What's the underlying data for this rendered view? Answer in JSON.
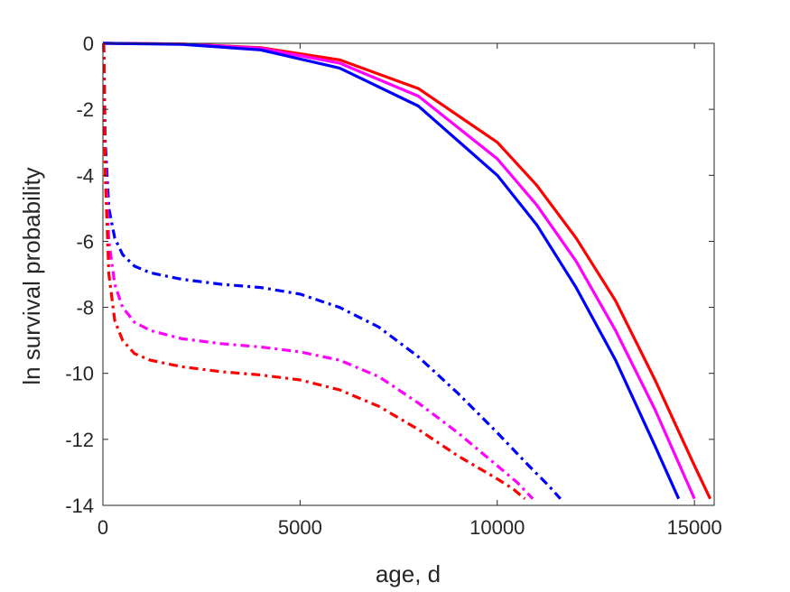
{
  "chart_data": {
    "type": "line",
    "xlabel": "age, d",
    "ylabel": "ln survival probability",
    "xlim": [
      0,
      15500
    ],
    "ylim": [
      -14,
      0
    ],
    "xticks": [
      0,
      5000,
      10000,
      15000
    ],
    "xtick_labels": [
      "0",
      "5000",
      "10000",
      "15000"
    ],
    "yticks": [
      0,
      -2,
      -4,
      -6,
      -8,
      -10,
      -12,
      -14
    ],
    "ytick_labels": [
      "0",
      "-2",
      "-4",
      "-6",
      "-8",
      "-10",
      "-12",
      "-14"
    ],
    "grid": false,
    "series": [
      {
        "color": "#ff0000",
        "style": "solid",
        "x": [
          0,
          100,
          2000,
          4000,
          6000,
          8000,
          10000,
          11000,
          12000,
          13000,
          14000,
          15000,
          15400
        ],
        "y": [
          0,
          0,
          -0.02,
          -0.13,
          -0.5,
          -1.37,
          -3.0,
          -4.3,
          -5.9,
          -7.8,
          -10.2,
          -12.8,
          -13.8
        ]
      },
      {
        "color": "#ff00ff",
        "style": "solid",
        "x": [
          0,
          100,
          2000,
          4000,
          6000,
          8000,
          10000,
          11000,
          12000,
          13000,
          14000,
          15000
        ],
        "y": [
          0,
          0,
          -0.02,
          -0.15,
          -0.6,
          -1.6,
          -3.5,
          -4.9,
          -6.6,
          -8.7,
          -11.1,
          -13.8
        ]
      },
      {
        "color": "#0000ff",
        "style": "solid",
        "x": [
          0,
          100,
          2000,
          4000,
          6000,
          8000,
          10000,
          11000,
          12000,
          13000,
          14000,
          14600
        ],
        "y": [
          0,
          0,
          -0.03,
          -0.2,
          -0.75,
          -1.9,
          -4.0,
          -5.5,
          -7.4,
          -9.6,
          -12.2,
          -13.8
        ]
      },
      {
        "color": "#0000ff",
        "style": "dashdot",
        "x": [
          20,
          60,
          150,
          300,
          500,
          800,
          1200,
          2000,
          3000,
          4000,
          5000,
          6000,
          7000,
          8000,
          9000,
          10000,
          10800,
          11300,
          11600
        ],
        "y": [
          0,
          -3.0,
          -5.0,
          -5.9,
          -6.4,
          -6.75,
          -6.95,
          -7.15,
          -7.3,
          -7.4,
          -7.6,
          -8.0,
          -8.6,
          -9.5,
          -10.6,
          -11.8,
          -12.8,
          -13.4,
          -13.8
        ]
      },
      {
        "color": "#ff00ff",
        "style": "dashdot",
        "x": [
          20,
          60,
          150,
          300,
          500,
          800,
          1200,
          2000,
          3000,
          4000,
          5000,
          6000,
          7000,
          8000,
          9000,
          10000,
          10500,
          10900
        ],
        "y": [
          0,
          -3.5,
          -6.0,
          -7.3,
          -8.0,
          -8.45,
          -8.7,
          -8.95,
          -9.1,
          -9.2,
          -9.35,
          -9.6,
          -10.1,
          -10.9,
          -11.8,
          -12.8,
          -13.3,
          -13.8
        ]
      },
      {
        "color": "#ff0000",
        "style": "dashdot",
        "x": [
          20,
          60,
          150,
          300,
          500,
          800,
          1200,
          2000,
          3000,
          4000,
          5000,
          6000,
          7000,
          8000,
          9000,
          10000,
          10400,
          10700
        ],
        "y": [
          0,
          -4.0,
          -7.0,
          -8.4,
          -9.0,
          -9.4,
          -9.6,
          -9.8,
          -9.95,
          -10.05,
          -10.2,
          -10.5,
          -11.0,
          -11.7,
          -12.5,
          -13.2,
          -13.5,
          -13.8
        ]
      }
    ]
  }
}
